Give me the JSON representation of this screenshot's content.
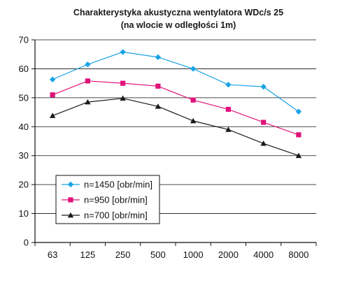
{
  "chart_data": {
    "type": "line",
    "title": "Charakterystyka akustyczna wentylatora WDc/s 25",
    "subtitle": "(na wlocie w odległości 1m)",
    "categories": [
      "63",
      "125",
      "250",
      "500",
      "1000",
      "2000",
      "4000",
      "8000"
    ],
    "y_ticks": [
      "0",
      "10",
      "20",
      "30",
      "40",
      "50",
      "60",
      "70"
    ],
    "ylim": [
      0,
      70
    ],
    "grid": true,
    "legend_position": "bottom-left",
    "series": [
      {
        "name": "n=1450 [obr/min]",
        "color": "#1aa3e6",
        "marker": "diamond",
        "values": [
          56.3,
          61.5,
          65.8,
          64.0,
          60.0,
          54.5,
          53.8,
          45.2
        ]
      },
      {
        "name": "n=950 [obr/min]",
        "color": "#e0127a",
        "marker": "square",
        "values": [
          51.0,
          55.8,
          55.0,
          54.0,
          49.2,
          46.0,
          41.5,
          37.2
        ]
      },
      {
        "name": "n=700 [obr/min]",
        "color": "#1a1a1a",
        "marker": "triangle",
        "values": [
          43.8,
          48.5,
          49.8,
          47.0,
          42.0,
          39.0,
          34.2,
          30.0
        ]
      }
    ]
  }
}
